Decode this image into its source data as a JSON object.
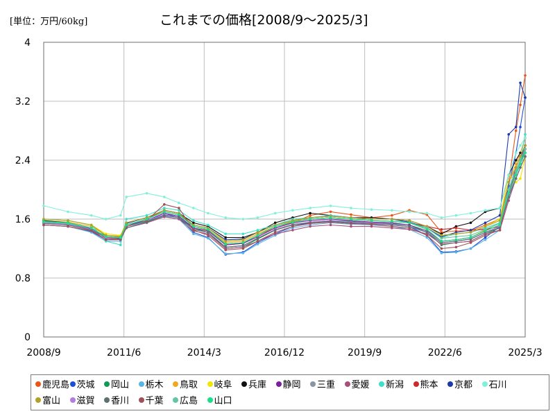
{
  "unit_label": "[単位：万円/60kg]",
  "chart_data": {
    "type": "line",
    "title": "これまでの価格[2008/9～2025/3]",
    "ylim": [
      0,
      4
    ],
    "yticks": [
      "0",
      "0.8",
      "1.6",
      "2.4",
      "3.2",
      "4"
    ],
    "xlim": [
      2008.667,
      2025.167
    ],
    "xticks": [
      {
        "x": 2008.667,
        "label": "2008/9"
      },
      {
        "x": 2011.417,
        "label": "2011/6"
      },
      {
        "x": 2014.167,
        "label": "2014/3"
      },
      {
        "x": 2016.917,
        "label": "2016/12"
      },
      {
        "x": 2019.667,
        "label": "2019/9"
      },
      {
        "x": 2022.417,
        "label": "2022/6"
      },
      {
        "x": 2025.167,
        "label": "2025/3"
      }
    ],
    "grid": true,
    "legend_position": "bottom",
    "x_anchors": [
      2008.667,
      2009.5,
      2010.3,
      2010.8,
      2011.3,
      2011.5,
      2012.2,
      2012.8,
      2013.3,
      2013.8,
      2014.3,
      2014.9,
      2015.5,
      2016.0,
      2016.6,
      2017.2,
      2017.8,
      2018.5,
      2019.2,
      2019.9,
      2020.6,
      2021.2,
      2021.8,
      2022.3,
      2022.8,
      2023.3,
      2023.8,
      2024.3,
      2024.6,
      2024.85,
      2025.0,
      2025.167
    ],
    "series": [
      {
        "name": "鹿児島",
        "color": "#e8561a",
        "values": [
          1.55,
          1.52,
          1.45,
          1.34,
          1.33,
          1.5,
          1.6,
          1.72,
          1.68,
          1.5,
          1.45,
          1.25,
          1.27,
          1.38,
          1.48,
          1.55,
          1.65,
          1.7,
          1.66,
          1.62,
          1.65,
          1.72,
          1.66,
          1.42,
          1.44,
          1.44,
          1.52,
          1.6,
          2.1,
          2.8,
          3.15,
          3.55
        ]
      },
      {
        "name": "茨城",
        "color": "#1f4ed6",
        "values": [
          1.52,
          1.5,
          1.43,
          1.32,
          1.33,
          1.52,
          1.58,
          1.68,
          1.62,
          1.42,
          1.35,
          1.12,
          1.15,
          1.28,
          1.4,
          1.5,
          1.55,
          1.58,
          1.56,
          1.55,
          1.52,
          1.5,
          1.38,
          1.15,
          1.16,
          1.2,
          1.35,
          1.5,
          2.05,
          2.5,
          2.85,
          3.25
        ]
      },
      {
        "name": "岡山",
        "color": "#0e9a55",
        "values": [
          1.55,
          1.53,
          1.45,
          1.38,
          1.36,
          1.5,
          1.57,
          1.65,
          1.62,
          1.48,
          1.42,
          1.2,
          1.22,
          1.33,
          1.45,
          1.52,
          1.56,
          1.58,
          1.57,
          1.55,
          1.54,
          1.52,
          1.42,
          1.25,
          1.28,
          1.3,
          1.4,
          1.48,
          1.95,
          2.2,
          2.35,
          2.55
        ]
      },
      {
        "name": "栃木",
        "color": "#5ab4e6",
        "values": [
          1.52,
          1.5,
          1.42,
          1.3,
          1.3,
          1.5,
          1.56,
          1.64,
          1.6,
          1.4,
          1.34,
          1.13,
          1.14,
          1.26,
          1.38,
          1.48,
          1.52,
          1.55,
          1.53,
          1.52,
          1.5,
          1.46,
          1.35,
          1.14,
          1.15,
          1.2,
          1.32,
          1.45,
          2.0,
          2.3,
          2.45,
          2.6
        ]
      },
      {
        "name": "鳥取",
        "color": "#f0a820",
        "values": [
          1.58,
          1.56,
          1.5,
          1.38,
          1.37,
          1.52,
          1.6,
          1.7,
          1.66,
          1.5,
          1.46,
          1.28,
          1.3,
          1.4,
          1.5,
          1.57,
          1.6,
          1.62,
          1.6,
          1.58,
          1.57,
          1.55,
          1.46,
          1.3,
          1.32,
          1.35,
          1.45,
          1.55,
          2.1,
          2.35,
          2.5,
          2.7
        ]
      },
      {
        "name": "岐阜",
        "color": "#f2e600",
        "values": [
          1.6,
          1.58,
          1.52,
          1.4,
          1.38,
          1.55,
          1.62,
          1.72,
          1.68,
          1.52,
          1.48,
          1.3,
          1.32,
          1.42,
          1.52,
          1.58,
          1.62,
          1.64,
          1.62,
          1.6,
          1.6,
          1.58,
          1.5,
          1.38,
          1.4,
          1.42,
          1.5,
          1.6,
          2.2,
          2.1,
          2.15,
          2.45
        ]
      },
      {
        "name": "兵庫",
        "color": "#111111",
        "values": [
          1.58,
          1.55,
          1.48,
          1.35,
          1.35,
          1.55,
          1.62,
          1.72,
          1.68,
          1.55,
          1.5,
          1.35,
          1.35,
          1.42,
          1.55,
          1.62,
          1.68,
          1.65,
          1.62,
          1.62,
          1.6,
          1.58,
          1.5,
          1.4,
          1.5,
          1.55,
          1.7,
          1.75,
          2.2,
          2.4,
          2.5,
          2.5
        ]
      },
      {
        "name": "静岡",
        "color": "#7a1fa0",
        "values": [
          1.56,
          1.54,
          1.47,
          1.35,
          1.34,
          1.5,
          1.58,
          1.68,
          1.64,
          1.48,
          1.44,
          1.25,
          1.27,
          1.36,
          1.48,
          1.55,
          1.58,
          1.6,
          1.58,
          1.56,
          1.55,
          1.52,
          1.44,
          1.3,
          1.32,
          1.35,
          1.44,
          1.52,
          1.9,
          2.25,
          2.4,
          2.6
        ]
      },
      {
        "name": "三重",
        "color": "#8a95a5",
        "values": [
          1.55,
          1.53,
          1.46,
          1.36,
          1.35,
          1.5,
          1.58,
          1.66,
          1.62,
          1.46,
          1.42,
          1.22,
          1.24,
          1.34,
          1.46,
          1.53,
          1.56,
          1.58,
          1.56,
          1.55,
          1.53,
          1.5,
          1.42,
          1.28,
          1.3,
          1.33,
          1.42,
          1.5,
          1.95,
          2.2,
          2.35,
          2.5
        ]
      },
      {
        "name": "愛媛",
        "color": "#a8507c",
        "values": [
          1.52,
          1.5,
          1.44,
          1.34,
          1.32,
          1.48,
          1.55,
          1.63,
          1.6,
          1.44,
          1.4,
          1.2,
          1.22,
          1.3,
          1.4,
          1.45,
          1.5,
          1.52,
          1.5,
          1.5,
          1.48,
          1.46,
          1.4,
          1.26,
          1.28,
          1.3,
          1.4,
          1.45,
          1.85,
          2.15,
          2.3,
          2.45
        ]
      },
      {
        "name": "新潟",
        "color": "#3ee0c8",
        "values": [
          1.6,
          1.58,
          1.52,
          1.3,
          1.25,
          1.6,
          1.65,
          1.75,
          1.72,
          1.58,
          1.52,
          1.4,
          1.4,
          1.45,
          1.52,
          1.6,
          1.62,
          1.65,
          1.62,
          1.6,
          1.6,
          1.55,
          1.48,
          1.35,
          1.4,
          1.42,
          1.48,
          1.55,
          2.0,
          2.2,
          2.4,
          2.75
        ]
      },
      {
        "name": "熊本",
        "color": "#cc2a2a",
        "values": [
          1.56,
          1.54,
          1.48,
          1.36,
          1.35,
          1.52,
          1.6,
          1.7,
          1.66,
          1.5,
          1.46,
          1.26,
          1.28,
          1.38,
          1.5,
          1.56,
          1.6,
          1.62,
          1.6,
          1.58,
          1.57,
          1.55,
          1.5,
          1.46,
          1.48,
          1.45,
          1.46,
          1.5,
          1.9,
          2.3,
          2.45,
          2.6
        ]
      },
      {
        "name": "京都",
        "color": "#1a3aa8",
        "values": [
          1.56,
          1.54,
          1.48,
          1.35,
          1.35,
          1.54,
          1.62,
          1.72,
          1.68,
          1.52,
          1.48,
          1.32,
          1.33,
          1.42,
          1.52,
          1.58,
          1.62,
          1.64,
          1.62,
          1.6,
          1.6,
          1.56,
          1.48,
          1.36,
          1.42,
          1.45,
          1.55,
          1.65,
          2.75,
          2.85,
          3.45,
          3.25
        ]
      },
      {
        "name": "石川",
        "color": "#7ff0dc",
        "values": [
          1.78,
          1.7,
          1.65,
          1.6,
          1.65,
          1.9,
          1.95,
          1.9,
          1.82,
          1.75,
          1.68,
          1.62,
          1.6,
          1.62,
          1.68,
          1.72,
          1.75,
          1.78,
          1.75,
          1.73,
          1.72,
          1.7,
          1.68,
          1.62,
          1.65,
          1.68,
          1.72,
          1.75,
          2.2,
          2.5,
          2.6,
          2.7
        ]
      },
      {
        "name": "富山",
        "color": "#b0a228",
        "values": [
          1.6,
          1.58,
          1.52,
          1.38,
          1.36,
          1.55,
          1.62,
          1.72,
          1.68,
          1.52,
          1.48,
          1.3,
          1.32,
          1.42,
          1.52,
          1.58,
          1.62,
          1.64,
          1.62,
          1.6,
          1.6,
          1.58,
          1.5,
          1.38,
          1.4,
          1.42,
          1.5,
          1.58,
          2.1,
          2.3,
          2.45,
          2.6
        ]
      },
      {
        "name": "滋賀",
        "color": "#b27de0",
        "values": [
          1.55,
          1.53,
          1.46,
          1.35,
          1.34,
          1.5,
          1.58,
          1.66,
          1.62,
          1.46,
          1.42,
          1.22,
          1.24,
          1.34,
          1.46,
          1.52,
          1.56,
          1.58,
          1.56,
          1.55,
          1.53,
          1.5,
          1.42,
          1.28,
          1.3,
          1.33,
          1.42,
          1.5,
          1.9,
          2.2,
          2.35,
          2.5
        ]
      },
      {
        "name": "香川",
        "color": "#5c7070",
        "values": [
          1.54,
          1.52,
          1.45,
          1.36,
          1.34,
          1.48,
          1.56,
          1.65,
          1.62,
          1.46,
          1.42,
          1.22,
          1.24,
          1.34,
          1.45,
          1.52,
          1.55,
          1.57,
          1.55,
          1.54,
          1.52,
          1.5,
          1.42,
          1.28,
          1.3,
          1.33,
          1.42,
          1.48,
          1.9,
          2.15,
          2.3,
          2.45
        ]
      },
      {
        "name": "千葉",
        "color": "#a0505a",
        "values": [
          1.52,
          1.5,
          1.44,
          1.32,
          1.32,
          1.5,
          1.58,
          1.8,
          1.75,
          1.45,
          1.38,
          1.18,
          1.2,
          1.3,
          1.42,
          1.5,
          1.54,
          1.56,
          1.54,
          1.53,
          1.5,
          1.48,
          1.38,
          1.2,
          1.22,
          1.28,
          1.38,
          1.45,
          1.95,
          2.25,
          2.4,
          2.55
        ]
      },
      {
        "name": "広島",
        "color": "#5fc8a0",
        "values": [
          1.56,
          1.54,
          1.48,
          1.36,
          1.35,
          1.52,
          1.6,
          1.7,
          1.66,
          1.5,
          1.46,
          1.26,
          1.28,
          1.38,
          1.5,
          1.56,
          1.6,
          1.62,
          1.6,
          1.58,
          1.57,
          1.55,
          1.48,
          1.34,
          1.36,
          1.38,
          1.46,
          1.54,
          2.0,
          2.25,
          2.4,
          2.55
        ]
      },
      {
        "name": "山口",
        "color": "#18e08a",
        "values": [
          1.57,
          1.55,
          1.48,
          1.36,
          1.35,
          1.52,
          1.6,
          1.7,
          1.66,
          1.5,
          1.46,
          1.26,
          1.28,
          1.38,
          1.5,
          1.56,
          1.6,
          1.62,
          1.6,
          1.58,
          1.57,
          1.55,
          1.46,
          1.3,
          1.32,
          1.35,
          1.44,
          1.52,
          1.95,
          2.2,
          2.35,
          2.5
        ]
      }
    ]
  }
}
